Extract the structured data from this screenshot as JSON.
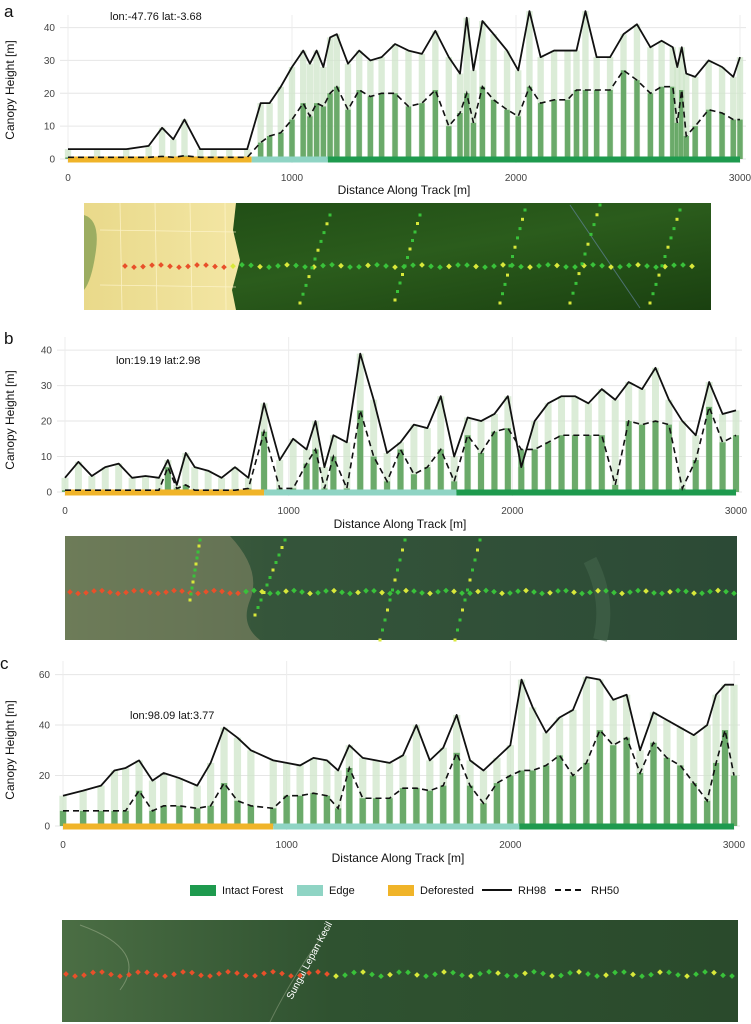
{
  "legend": {
    "intact_label": "Intact Forest",
    "edge_label": "Edge",
    "deforested_label": "Deforested",
    "rh98_label": "RH98",
    "rh50_label": "RH50"
  },
  "colors": {
    "intact": "#1e9a4e",
    "edge": "#8fd4c4",
    "deforested": "#f0b429",
    "bar_light": "#cfe5c9",
    "bar_dark": "#4f9a4f"
  },
  "maps": [
    {
      "label": "",
      "icon": "satellite-map-a"
    },
    {
      "label": "",
      "icon": "satellite-map-b"
    },
    {
      "label": "Sungai Lepan Kecil",
      "icon": "satellite-map-c"
    }
  ],
  "chart_data": [
    {
      "type": "line",
      "panel_label": "a",
      "annotation": "lon:-47.76 lat:-3.68",
      "xlabel": "Distance Along Track [m]",
      "ylabel": "Canopy Height [m]",
      "xlim": [
        0,
        3000
      ],
      "ylim": [
        0,
        42
      ],
      "xticks": [
        0,
        1000,
        2000,
        3000
      ],
      "yticks": [
        0,
        10,
        20,
        30,
        40
      ],
      "grid": true,
      "segments": [
        {
          "class": "Deforested",
          "from": 0,
          "to": 820
        },
        {
          "class": "Edge",
          "from": 820,
          "to": 1160
        },
        {
          "class": "Intact Forest",
          "from": 1160,
          "to": 3000
        }
      ],
      "x": [
        0,
        130,
        260,
        360,
        420,
        470,
        520,
        590,
        650,
        720,
        800,
        860,
        900,
        950,
        1000,
        1050,
        1080,
        1110,
        1140,
        1170,
        1200,
        1250,
        1300,
        1350,
        1400,
        1460,
        1520,
        1580,
        1640,
        1700,
        1750,
        1780,
        1810,
        1850,
        1900,
        1960,
        2010,
        2060,
        2110,
        2170,
        2230,
        2270,
        2310,
        2360,
        2420,
        2480,
        2540,
        2600,
        2650,
        2700,
        2720,
        2740,
        2760,
        2800,
        2860,
        2920,
        2970,
        3000
      ],
      "series": [
        {
          "name": "RH98",
          "values": [
            3,
            3,
            3,
            4,
            9.5,
            6,
            12,
            3,
            3,
            3,
            3,
            17,
            17,
            22,
            28,
            33,
            29,
            33,
            28,
            37,
            38,
            29,
            33,
            30,
            31,
            35,
            33,
            32,
            39,
            31,
            26,
            43,
            27,
            42,
            38,
            33,
            27,
            45,
            31,
            33,
            33,
            33,
            45,
            31,
            31,
            38,
            41,
            34,
            36,
            34,
            28,
            34,
            26,
            25,
            30,
            28,
            25,
            31
          ]
        },
        {
          "name": "RH50",
          "values": [
            0.5,
            0.5,
            0.5,
            0.5,
            0.8,
            0.5,
            1,
            0.5,
            0.5,
            0.5,
            0.5,
            5,
            7,
            8,
            12,
            17,
            13,
            17,
            16,
            20,
            22,
            15,
            21,
            19,
            20,
            20,
            16,
            17,
            21,
            10,
            14,
            20,
            11,
            22,
            18,
            15,
            13,
            22,
            17,
            18,
            18,
            21,
            21,
            21,
            21,
            27,
            24,
            20,
            22,
            22,
            11,
            21,
            7,
            10,
            15,
            14,
            12,
            12
          ]
        }
      ]
    },
    {
      "type": "line",
      "panel_label": "b",
      "annotation": "lon:19.19 lat:2.98",
      "xlabel": "Distance Along Track [m]",
      "ylabel": "Canopy Height [m]",
      "xlim": [
        0,
        3000
      ],
      "ylim": [
        0,
        42
      ],
      "xticks": [
        0,
        1000,
        2000,
        3000
      ],
      "yticks": [
        0,
        10,
        20,
        30,
        40
      ],
      "grid": true,
      "segments": [
        {
          "class": "Deforested",
          "from": 0,
          "to": 890
        },
        {
          "class": "Edge",
          "from": 890,
          "to": 1750
        },
        {
          "class": "Intact Forest",
          "from": 1750,
          "to": 3000
        }
      ],
      "x": [
        0,
        60,
        120,
        180,
        240,
        300,
        360,
        420,
        460,
        500,
        540,
        580,
        640,
        700,
        760,
        820,
        890,
        960,
        1020,
        1080,
        1120,
        1160,
        1200,
        1260,
        1320,
        1380,
        1440,
        1500,
        1560,
        1620,
        1680,
        1740,
        1800,
        1860,
        1920,
        1980,
        2040,
        2100,
        2160,
        2220,
        2280,
        2340,
        2400,
        2460,
        2520,
        2580,
        2640,
        2700,
        2760,
        2820,
        2880,
        2940,
        3000
      ],
      "series": [
        {
          "name": "RH98",
          "values": [
            4,
            8.5,
            4.5,
            7,
            8,
            4,
            4.5,
            4,
            9,
            2,
            11,
            7,
            6,
            4,
            7,
            4,
            25,
            9,
            15,
            12,
            20,
            7,
            16,
            14,
            39,
            26,
            11,
            14,
            19,
            18,
            27,
            10,
            21,
            20,
            22,
            27,
            7,
            20,
            25,
            27,
            27,
            25,
            29,
            26,
            31,
            29,
            35,
            26,
            20,
            16,
            31,
            22,
            23
          ]
        },
        {
          "name": "RH50",
          "values": [
            0.5,
            0.5,
            0.5,
            0.5,
            0.5,
            0.5,
            0.5,
            0.5,
            7,
            1,
            2,
            0.5,
            0.5,
            0.5,
            0.5,
            1,
            17,
            1,
            1,
            8,
            12,
            1,
            10,
            1,
            23,
            10,
            3,
            12,
            5,
            7,
            12,
            3,
            16,
            11,
            17,
            18,
            12,
            12,
            14,
            16,
            16,
            16,
            16,
            2,
            20,
            19,
            20,
            19,
            1,
            9,
            24,
            14,
            16
          ]
        }
      ]
    },
    {
      "type": "line",
      "panel_label": "c",
      "annotation": "lon:98.09 lat:3.77",
      "xlabel": "Distance Along Track [m]",
      "ylabel": "Canopy Height [m]",
      "xlim": [
        0,
        3000
      ],
      "ylim": [
        0,
        63
      ],
      "xticks": [
        0,
        1000,
        2000,
        3000
      ],
      "yticks": [
        0,
        20,
        40,
        60
      ],
      "grid": true,
      "segments": [
        {
          "class": "Deforested",
          "from": 0,
          "to": 940
        },
        {
          "class": "Edge",
          "from": 940,
          "to": 2040
        },
        {
          "class": "Intact Forest",
          "from": 2040,
          "to": 3000
        }
      ],
      "x": [
        0,
        90,
        170,
        230,
        280,
        340,
        400,
        450,
        520,
        600,
        660,
        720,
        780,
        840,
        940,
        1000,
        1060,
        1120,
        1180,
        1230,
        1280,
        1340,
        1400,
        1460,
        1520,
        1580,
        1640,
        1700,
        1760,
        1820,
        1880,
        1940,
        2000,
        2050,
        2100,
        2160,
        2220,
        2280,
        2340,
        2400,
        2460,
        2520,
        2580,
        2640,
        2700,
        2760,
        2820,
        2880,
        2920,
        2960,
        3000
      ],
      "series": [
        {
          "name": "RH98",
          "values": [
            12,
            14,
            16,
            22,
            23,
            26,
            18,
            21,
            19,
            16,
            25,
            39,
            35,
            30,
            26,
            25,
            24,
            27,
            26,
            22,
            32,
            27,
            26,
            25,
            28,
            40,
            26,
            31,
            44,
            26,
            22,
            27,
            32,
            58,
            47,
            37,
            43,
            46,
            59,
            58,
            50,
            52,
            30,
            45,
            42,
            39,
            36,
            40,
            52,
            56,
            56
          ]
        },
        {
          "name": "RH50",
          "values": [
            6,
            6,
            6,
            6,
            6,
            14,
            6,
            8,
            8,
            7,
            8,
            17,
            10,
            8,
            7,
            12,
            12,
            13,
            12,
            7,
            23,
            11,
            11,
            11,
            15,
            15,
            14,
            16,
            29,
            16,
            9,
            17,
            20,
            22,
            22,
            24,
            28,
            20,
            25,
            38,
            32,
            35,
            21,
            33,
            27,
            24,
            17,
            10,
            25,
            38,
            20
          ]
        }
      ]
    }
  ]
}
